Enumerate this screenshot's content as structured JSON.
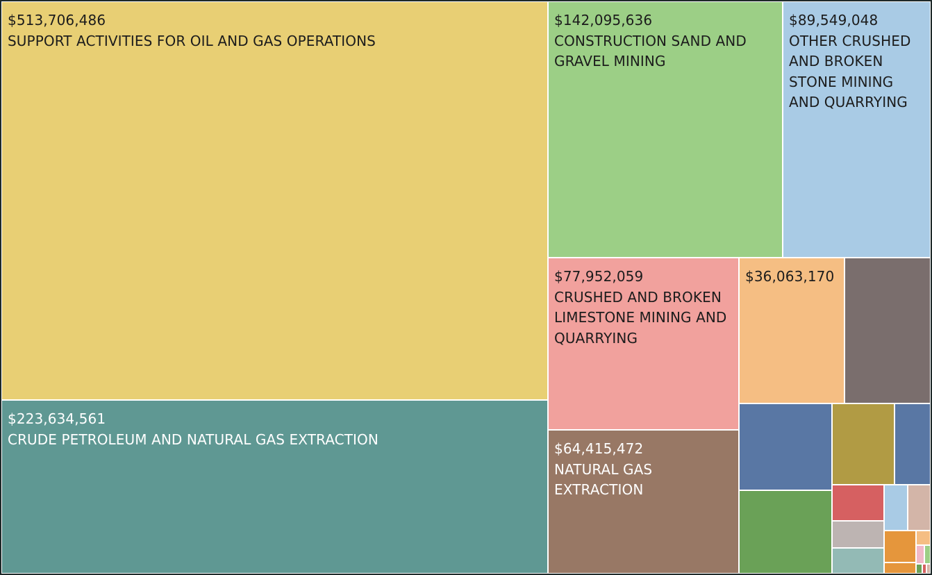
{
  "chart_data": {
    "type": "treemap",
    "value_format": "currency",
    "tiles": [
      {
        "label_value": "$513,706,486",
        "name": "SUPPORT ACTIVITIES FOR OIL AND GAS OPERATIONS",
        "value": 513706486,
        "color": "#e8cf74",
        "text_color": "dark"
      },
      {
        "label_value": "$223,634,561",
        "name": "CRUDE PETROLEUM AND NATURAL GAS EXTRACTION",
        "value": 223634561,
        "color": "#5f9893",
        "text_color": "light"
      },
      {
        "label_value": "$142,095,636",
        "name": "CONSTRUCTION SAND AND GRAVEL MINING",
        "value": 142095636,
        "color": "#9ccf86",
        "text_color": "dark"
      },
      {
        "label_value": "$89,549,048",
        "name": "OTHER CRUSHED AND BROKEN STONE MINING AND QUARRYING",
        "value": 89549048,
        "color": "#a9cbe5",
        "text_color": "dark"
      },
      {
        "label_value": "$77,952,059",
        "name": "CRUSHED AND BROKEN LIMESTONE MINING AND QUARRYING",
        "value": 77952059,
        "color": "#f1a19d",
        "text_color": "dark"
      },
      {
        "label_value": "$64,415,472",
        "name": "NATURAL GAS EXTRACTION",
        "value": 64415472,
        "color": "#987865",
        "text_color": "light"
      },
      {
        "label_value": "$36,063,170",
        "name": "",
        "value": 36063170,
        "color": "#f5be83",
        "text_color": "dark"
      },
      {
        "label_value": "",
        "name": "",
        "color": "#7a6e6d",
        "text_color": "light"
      },
      {
        "label_value": "",
        "name": "",
        "color": "#5977a4",
        "text_color": "light"
      },
      {
        "label_value": "",
        "name": "",
        "color": "#b19b44",
        "text_color": "light"
      },
      {
        "label_value": "",
        "name": "",
        "color": "#5977a4",
        "text_color": "light"
      },
      {
        "label_value": "",
        "name": "",
        "color": "#6aa157",
        "text_color": "light"
      },
      {
        "label_value": "",
        "name": "",
        "color": "#d66061",
        "text_color": "light"
      },
      {
        "label_value": "",
        "name": "",
        "color": "#a9cbe5",
        "text_color": "light"
      },
      {
        "label_value": "",
        "name": "",
        "color": "#d3b5a8",
        "text_color": "light"
      },
      {
        "label_value": "",
        "name": "",
        "color": "#bdb4b2",
        "text_color": "light"
      },
      {
        "label_value": "",
        "name": "",
        "color": "#93bab5",
        "text_color": "light"
      },
      {
        "label_value": "",
        "name": "",
        "color": "#e5963c",
        "text_color": "light"
      },
      {
        "label_value": "",
        "name": "",
        "color": "#f5be83",
        "text_color": "light"
      },
      {
        "label_value": "",
        "name": "",
        "color": "#f1b9c8",
        "text_color": "light"
      },
      {
        "label_value": "",
        "name": "",
        "color": "#9ccf86",
        "text_color": "light"
      },
      {
        "label_value": "",
        "name": "",
        "color": "#e5963c",
        "text_color": "light"
      },
      {
        "label_value": "",
        "name": "",
        "color": "#6aa157",
        "text_color": "light"
      },
      {
        "label_value": "",
        "name": "",
        "color": "#d66061",
        "text_color": "light"
      },
      {
        "label_value": "",
        "name": "",
        "color": "#d3b5a8",
        "text_color": "light"
      }
    ]
  }
}
